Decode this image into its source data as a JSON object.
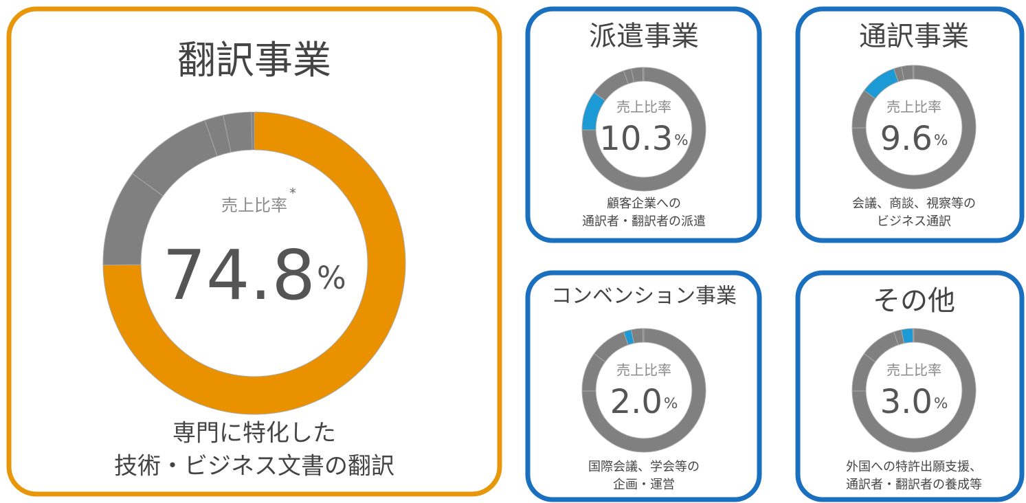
{
  "chart_data": [
    {
      "type": "pie",
      "title": "翻訳事業",
      "center_label": "売上比率",
      "note_mark": "*",
      "value_label": "74.8%",
      "values": [
        74.8,
        10.3,
        9.6,
        2.0,
        3.0
      ],
      "colors": [
        "#ea9100",
        "#808080",
        "#808080",
        "#808080",
        "#808080"
      ],
      "description": [
        "専門に特化した",
        "技術・ビジネス文書の翻訳"
      ]
    },
    {
      "type": "pie",
      "title": "派遣事業",
      "center_label": "売上比率",
      "value_label": "10.3%",
      "values": [
        74.8,
        10.3,
        9.6,
        2.0,
        3.0
      ],
      "colors": [
        "#808080",
        "#1b9ad6",
        "#808080",
        "#808080",
        "#808080"
      ],
      "description": [
        "顧客企業への",
        "通訳者・翻訳者の派遣"
      ]
    },
    {
      "type": "pie",
      "title": "通訳事業",
      "center_label": "売上比率",
      "value_label": "9.6%",
      "values": [
        74.8,
        10.3,
        9.6,
        2.0,
        3.0
      ],
      "colors": [
        "#808080",
        "#808080",
        "#1b9ad6",
        "#808080",
        "#808080"
      ],
      "description": [
        "会議、商談、視察等の",
        "ビジネス通訳"
      ]
    },
    {
      "type": "pie",
      "title": "コンベンション事業",
      "center_label": "売上比率",
      "value_label": "2.0%",
      "values": [
        74.8,
        10.3,
        9.6,
        2.0,
        3.0
      ],
      "colors": [
        "#808080",
        "#808080",
        "#808080",
        "#1b9ad6",
        "#808080"
      ],
      "description": [
        "国際会議、学会等の",
        "企画・運営"
      ]
    },
    {
      "type": "pie",
      "title": "その他",
      "center_label": "売上比率",
      "value_label": "3.0%",
      "values": [
        74.8,
        10.3,
        9.6,
        2.0,
        3.0
      ],
      "colors": [
        "#808080",
        "#808080",
        "#808080",
        "#808080",
        "#1b9ad6"
      ],
      "description": [
        "外国への特許出願支援、",
        "通訳者・翻訳者の養成等"
      ]
    }
  ]
}
